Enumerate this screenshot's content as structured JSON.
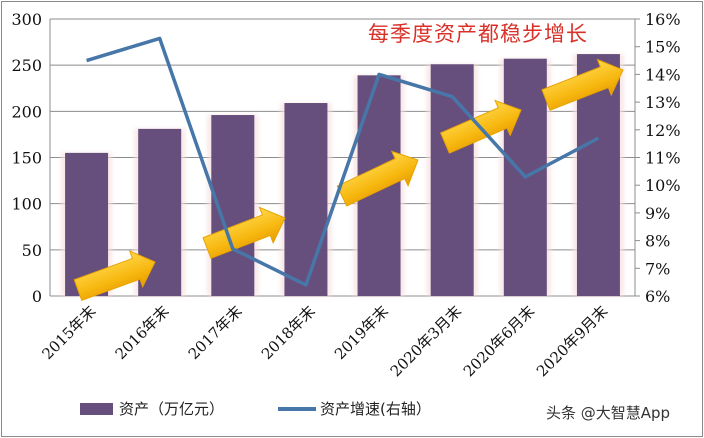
{
  "chart_data": {
    "type": "bar+line",
    "title": "每季度资产都稳步增长",
    "categories": [
      "2015年末",
      "2016年末",
      "2017年末",
      "2018年末",
      "2019年末",
      "2020年3月末",
      "2020年6月末",
      "2020年9月末"
    ],
    "series": [
      {
        "name": "资产（万亿元）",
        "type": "bar",
        "axis": "left",
        "color": "#674f7d",
        "values": [
          155,
          181,
          196,
          209,
          239,
          251,
          257,
          262
        ]
      },
      {
        "name": "资产增速(右轴）",
        "type": "line",
        "axis": "right",
        "color": "#4776a8",
        "values": [
          14.5,
          15.3,
          7.7,
          6.4,
          14.0,
          13.2,
          10.3,
          11.7
        ]
      }
    ],
    "left_axis": {
      "ylim": [
        0,
        300
      ],
      "ticks": [
        "0",
        "50",
        "100",
        "150",
        "200",
        "250",
        "300"
      ]
    },
    "right_axis": {
      "ylim": [
        6,
        16
      ],
      "ticks": [
        "6%",
        "7%",
        "8%",
        "9%",
        "10%",
        "11%",
        "12%",
        "13%",
        "14%",
        "15%",
        "16%"
      ]
    },
    "grid": true,
    "legend_position": "bottom",
    "annotations": [
      "yellow upward arrows decorative"
    ]
  },
  "legend": {
    "bar_label": "资产（万亿元）",
    "line_label": "资产增速(右轴）"
  },
  "watermark": "头条 @大智慧App"
}
